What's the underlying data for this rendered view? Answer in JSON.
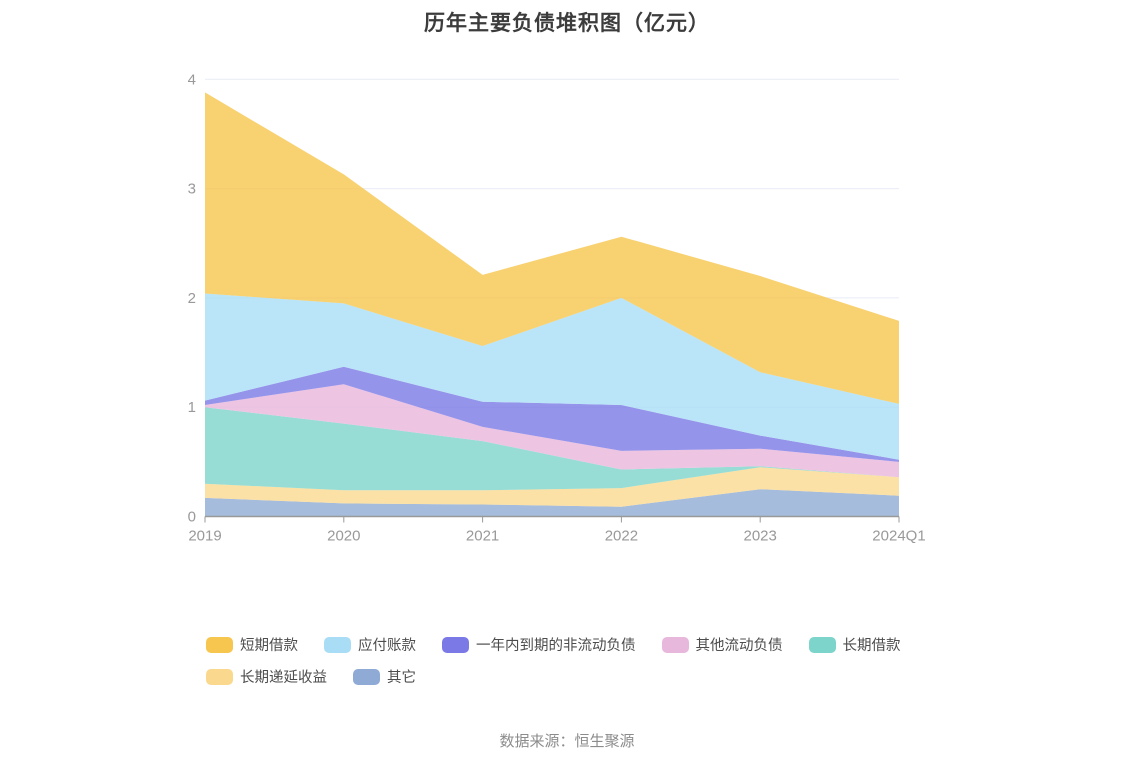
{
  "title": "历年主要负债堆积图（亿元）",
  "source": "数据来源：恒生聚源",
  "theme": {
    "title_color": "#3c3c3c",
    "axis_color": "#999999",
    "axis_label_color": "#999999",
    "grid_color": "#e8ecf6",
    "legend_text_color": "#4d4d4d",
    "source_color": "#8c8c8c",
    "background": "#ffffff",
    "area_opacity": 0.8
  },
  "chart_data": {
    "type": "area",
    "stacked": true,
    "title": "历年主要负债堆积图（亿元）",
    "categories": [
      "2019",
      "2020",
      "2021",
      "2022",
      "2023",
      "2024Q1"
    ],
    "series": [
      {
        "name": "短期借款",
        "key": "short-term-borrowings",
        "color": "#F6C64E",
        "values": [
          1.84,
          1.18,
          0.65,
          0.56,
          0.88,
          0.76
        ]
      },
      {
        "name": "应付账款",
        "key": "accounts-payable",
        "color": "#A9DDF5",
        "values": [
          0.98,
          0.58,
          0.51,
          0.98,
          0.58,
          0.51
        ]
      },
      {
        "name": "一年内到期的非流动负债",
        "key": "non-current-liabilities-due-within-one-year",
        "color": "#7B79E6",
        "values": [
          0.04,
          0.16,
          0.23,
          0.42,
          0.12,
          0.02
        ]
      },
      {
        "name": "其他流动负债",
        "key": "other-current-liabilities",
        "color": "#E8B7DC",
        "values": [
          0.02,
          0.36,
          0.13,
          0.17,
          0.16,
          0.14
        ]
      },
      {
        "name": "长期借款",
        "key": "long-term-borrowings",
        "color": "#7DD4CB",
        "values": [
          0.7,
          0.61,
          0.45,
          0.17,
          0.01,
          0.0
        ]
      },
      {
        "name": "长期递延收益",
        "key": "long-term-deferred-income",
        "color": "#FAD98E",
        "values": [
          0.13,
          0.12,
          0.13,
          0.17,
          0.2,
          0.17
        ]
      },
      {
        "name": "其它",
        "key": "others",
        "color": "#8FABD5",
        "values": [
          0.17,
          0.12,
          0.11,
          0.09,
          0.25,
          0.19
        ]
      }
    ],
    "stack_order_note": "series listed top-of-stack first; stacking bottom-to-top is the reverse order",
    "xlabel": "",
    "ylabel": "",
    "ylim": [
      0,
      4
    ],
    "y_ticks": [
      0,
      1,
      2,
      3,
      4
    ],
    "grid": true,
    "legend_position": "bottom"
  }
}
